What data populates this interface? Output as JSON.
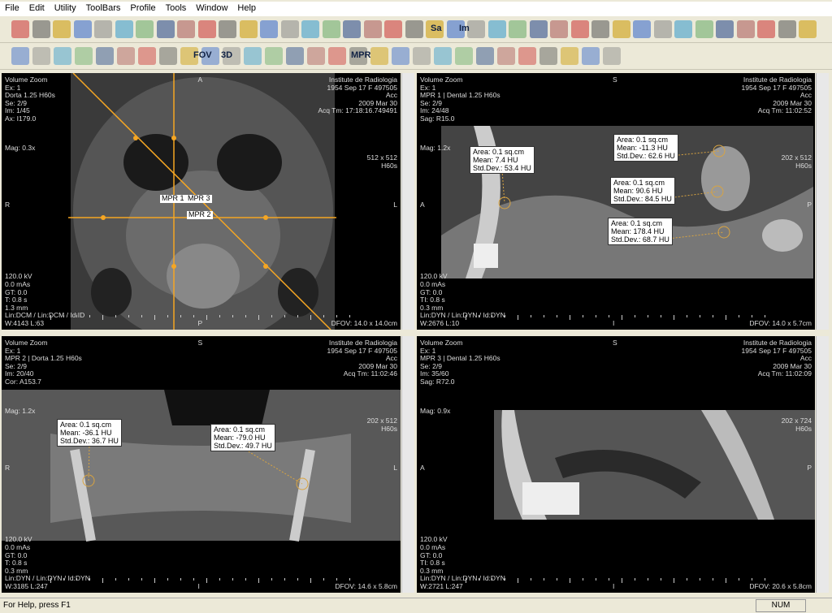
{
  "menu": [
    "File",
    "Edit",
    "Utility",
    "ToolBars",
    "Profile",
    "Tools",
    "Window",
    "Help"
  ],
  "toolbar": {
    "labels": [
      "Sa",
      "Im",
      "FOV",
      "3D",
      "MPR"
    ]
  },
  "viewports": [
    {
      "top_left": [
        "Volume Zoom",
        "Ex: 1",
        "Dorta 1.25 H60s",
        "Se: 2/9",
        "Im: 1/45",
        "Ax: I179.0"
      ],
      "mag": "Mag: 0.3x",
      "top": "A",
      "top_right": [
        "Institute de Radiologia",
        "1954 Sep 17 F 497505",
        "Acc",
        "2009 Mar 30",
        "Acq Tm: 17:18:16.749491"
      ],
      "side": [
        "512 x 512",
        "H60s"
      ],
      "left": "R",
      "right": "L",
      "bottom": "P",
      "bottom_left": [
        "120.0 kV",
        "0.0 mAs",
        "GT: 0.0",
        "T: 0.8 s",
        "1.3 mm",
        "Lin:DCM / Lin:DCM / Id:ID",
        "W:4143 L:63"
      ],
      "bottom_right": "DFOV: 14.0 x 14.0cm",
      "lines": [
        "MPR 1",
        "MPR 3",
        "MPR 2"
      ],
      "annotations": []
    },
    {
      "top_left": [
        "Volume Zoom",
        "Ex: 1",
        "MPR 1 | Dental 1.25 H60s",
        "Se: 2/9",
        "Im: 24/48",
        "Sag: R15.0"
      ],
      "mag": "Mag: 1.2x",
      "top": "S",
      "top_right": [
        "Institute de Radiologia",
        "1954 Sep 17 F 497505",
        "Acc",
        "2009 Mar 30",
        "Acq Tm: 11:02:52"
      ],
      "side": [
        "202 x 512",
        "H60s"
      ],
      "left": "A",
      "right": "P",
      "bottom": "I",
      "bottom_left": [
        "120.0 kV",
        "0.0 mAs",
        "GT: 0.0",
        "TI: 0.8 s",
        "0.3 mm",
        "Lin:DYN / Lin:DYN / Id:DYN",
        "W:2676 L:10"
      ],
      "bottom_right": "DFOV: 14.0 x 5.7cm",
      "lines": [],
      "annotations": [
        [
          "Area: 0.1 sq.cm",
          "Mean: 7.4 HU",
          "Std.Dev.: 53.4 HU"
        ],
        [
          "Area: 0.1 sq.cm",
          "Mean: -11.3 HU",
          "Std.Dev.: 62.6 HU"
        ],
        [
          "Area: 0.1 sq.cm",
          "Mean: 90.6 HU",
          "Std.Dev.: 84.5 HU"
        ],
        [
          "Area: 0.1 sq.cm",
          "Mean: 178.4 HU",
          "Std.Dev.: 68.7 HU"
        ]
      ]
    },
    {
      "top_left": [
        "Volume Zoom",
        "Ex: 1",
        "MPR 2 | Dorta 1.25 H60s",
        "Se: 2/9",
        "Im: 20/40",
        "Cor: A153.7"
      ],
      "mag": "Mag: 1.2x",
      "top": "S",
      "top_right": [
        "Institute de Radiologia",
        "1954 Sep 17 F 497505",
        "Acc",
        "2009 Mar 30",
        "Acq Tm: 11:02:46"
      ],
      "side": [
        "202 x 512",
        "H60s"
      ],
      "left": "R",
      "right": "L",
      "bottom": "I",
      "bottom_left": [
        "120.0 kV",
        "0.0 mAs",
        "GT: 0.0",
        "T: 0.8 s",
        "0.3 mm",
        "Lin:DYN / Lin:DYN / Id:DYN",
        "W:3185 L:247"
      ],
      "bottom_right": "DFOV: 14.6 x 5.8cm",
      "lines": [],
      "annotations": [
        [
          "Area: 0.1 sq.cm",
          "Mean: -36.1 HU",
          "Std.Dev.: 36.7 HU"
        ],
        [
          "Area: 0.1 sq.cm",
          "Mean: -79.0 HU",
          "Std.Dev.: 49.7 HU"
        ]
      ]
    },
    {
      "top_left": [
        "Volume Zoom",
        "Ex: 1",
        "MPR 3 | Dental 1.25 H60s",
        "Se: 2/9",
        "Im: 35/60",
        "Sag: R72.0"
      ],
      "mag": "Mag: 0.9x",
      "top": "S",
      "top_right": [
        "Institute de Radiologia",
        "1954 Sep 17 F 497505",
        "Acc",
        "2009 Mar 30",
        "Acq Tm: 11:02:09"
      ],
      "side": [
        "202 x 724",
        "H60s"
      ],
      "left": "A",
      "right": "P",
      "bottom": "I",
      "bottom_left": [
        "120.0 kV",
        "0.0 mAs",
        "GT: 0.0",
        "TI: 0.8 s",
        "0.3 mm",
        "Lin:DYN / Lin:DYN / Id:DYN",
        "W:2721 L:247"
      ],
      "bottom_right": "DFOV: 20.6 x 5.8cm",
      "lines": [],
      "annotations": []
    }
  ],
  "status": {
    "help": "For Help, press F1",
    "num": "NUM"
  }
}
